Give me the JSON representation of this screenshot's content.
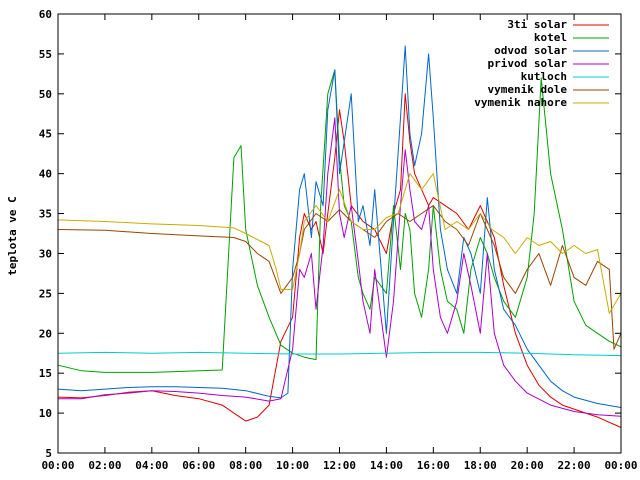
{
  "chart_data": {
    "type": "line",
    "title": "",
    "xlabel": "",
    "ylabel": "teplota ve C",
    "xlim": [
      0,
      24
    ],
    "ylim": [
      5,
      60
    ],
    "x_tick_labels": [
      "00:00",
      "02:00",
      "04:00",
      "06:00",
      "08:00",
      "10:00",
      "12:00",
      "14:00",
      "16:00",
      "18:00",
      "20:00",
      "22:00",
      "00:00"
    ],
    "y_tick_labels": [
      "5",
      "10",
      "15",
      "20",
      "25",
      "30",
      "35",
      "40",
      "45",
      "50",
      "55",
      "60"
    ],
    "grid": false,
    "legend_position": "top-right",
    "series": [
      {
        "name": "3ti solar",
        "color": "#dd0000",
        "points": [
          [
            0,
            12
          ],
          [
            1,
            11.9
          ],
          [
            2,
            12.2
          ],
          [
            3,
            12.6
          ],
          [
            4,
            12.8
          ],
          [
            5,
            12.2
          ],
          [
            6,
            11.8
          ],
          [
            7,
            11
          ],
          [
            7.5,
            10
          ],
          [
            8,
            9
          ],
          [
            8.5,
            9.5
          ],
          [
            9,
            11
          ],
          [
            9.5,
            19
          ],
          [
            10,
            22
          ],
          [
            10.3,
            32
          ],
          [
            10.5,
            35
          ],
          [
            10.8,
            33
          ],
          [
            11,
            34
          ],
          [
            11.3,
            30
          ],
          [
            11.5,
            35
          ],
          [
            11.8,
            42
          ],
          [
            12,
            48
          ],
          [
            12.2,
            44
          ],
          [
            12.5,
            36
          ],
          [
            13,
            34
          ],
          [
            13.5,
            33
          ],
          [
            14,
            30
          ],
          [
            14.3,
            35
          ],
          [
            14.6,
            38
          ],
          [
            14.8,
            50
          ],
          [
            15,
            44
          ],
          [
            15.2,
            40
          ],
          [
            15.5,
            38
          ],
          [
            15.8,
            36
          ],
          [
            16,
            37
          ],
          [
            16.5,
            36
          ],
          [
            17,
            35
          ],
          [
            17.5,
            33
          ],
          [
            18,
            36
          ],
          [
            18.3,
            34
          ],
          [
            18.6,
            32
          ],
          [
            19,
            26
          ],
          [
            19.5,
            20
          ],
          [
            20,
            16
          ],
          [
            20.5,
            13.5
          ],
          [
            21,
            12
          ],
          [
            21.5,
            11
          ],
          [
            22,
            10.5
          ],
          [
            23,
            9.5
          ],
          [
            24,
            8.2
          ]
        ]
      },
      {
        "name": "kotel",
        "color": "#00a000",
        "points": [
          [
            0,
            16
          ],
          [
            1,
            15.3
          ],
          [
            2,
            15.1
          ],
          [
            3,
            15.1
          ],
          [
            4,
            15.1
          ],
          [
            5,
            15.2
          ],
          [
            6,
            15.3
          ],
          [
            7,
            15.4
          ],
          [
            7.5,
            42
          ],
          [
            7.8,
            43.5
          ],
          [
            8,
            33
          ],
          [
            8.5,
            26
          ],
          [
            9,
            22
          ],
          [
            9.5,
            18.5
          ],
          [
            10,
            17.5
          ],
          [
            10.5,
            17
          ],
          [
            11,
            16.7
          ],
          [
            11.2,
            36
          ],
          [
            11.5,
            50
          ],
          [
            11.8,
            53
          ],
          [
            12,
            42
          ],
          [
            12.2,
            36
          ],
          [
            12.5,
            34
          ],
          [
            12.8,
            27
          ],
          [
            13,
            25
          ],
          [
            13.3,
            23
          ],
          [
            13.5,
            27
          ],
          [
            14,
            25
          ],
          [
            14.3,
            36
          ],
          [
            14.6,
            28
          ],
          [
            14.8,
            35
          ],
          [
            15,
            33
          ],
          [
            15.2,
            25
          ],
          [
            15.5,
            22
          ],
          [
            15.8,
            28
          ],
          [
            16,
            36
          ],
          [
            16.3,
            28
          ],
          [
            16.6,
            24
          ],
          [
            17,
            23
          ],
          [
            17.3,
            20
          ],
          [
            17.6,
            28
          ],
          [
            18,
            32
          ],
          [
            18.3,
            30
          ],
          [
            18.6,
            27
          ],
          [
            19,
            24
          ],
          [
            19.5,
            22
          ],
          [
            20,
            27
          ],
          [
            20.3,
            35
          ],
          [
            20.6,
            52
          ],
          [
            21,
            40
          ],
          [
            21.5,
            33
          ],
          [
            22,
            24
          ],
          [
            22.5,
            21
          ],
          [
            23,
            20
          ],
          [
            23.5,
            19
          ],
          [
            24,
            18.3
          ]
        ]
      },
      {
        "name": "odvod solar",
        "color": "#0066cc",
        "points": [
          [
            0,
            13
          ],
          [
            1,
            12.8
          ],
          [
            2,
            13
          ],
          [
            3,
            13.2
          ],
          [
            4,
            13.3
          ],
          [
            5,
            13.3
          ],
          [
            6,
            13.2
          ],
          [
            7,
            13.1
          ],
          [
            8,
            12.8
          ],
          [
            9,
            12.1
          ],
          [
            9.5,
            11.9
          ],
          [
            9.8,
            12.5
          ],
          [
            10,
            28
          ],
          [
            10.3,
            38
          ],
          [
            10.5,
            40
          ],
          [
            10.8,
            32
          ],
          [
            11,
            39
          ],
          [
            11.3,
            36
          ],
          [
            11.5,
            48
          ],
          [
            11.8,
            53
          ],
          [
            12,
            40
          ],
          [
            12.2,
            44
          ],
          [
            12.5,
            50
          ],
          [
            12.8,
            34
          ],
          [
            13,
            36
          ],
          [
            13.3,
            31
          ],
          [
            13.5,
            38
          ],
          [
            14,
            20
          ],
          [
            14.3,
            34
          ],
          [
            14.6,
            47
          ],
          [
            14.8,
            56
          ],
          [
            15,
            45
          ],
          [
            15.2,
            41
          ],
          [
            15.5,
            45
          ],
          [
            15.8,
            55
          ],
          [
            16,
            47
          ],
          [
            16.3,
            33
          ],
          [
            16.6,
            28
          ],
          [
            17,
            25
          ],
          [
            17.3,
            32
          ],
          [
            17.6,
            30
          ],
          [
            18,
            25
          ],
          [
            18.3,
            37
          ],
          [
            18.6,
            28
          ],
          [
            19,
            23
          ],
          [
            19.5,
            21
          ],
          [
            20,
            18
          ],
          [
            20.5,
            16
          ],
          [
            21,
            14
          ],
          [
            21.5,
            12.8
          ],
          [
            22,
            12
          ],
          [
            23,
            11.2
          ],
          [
            24,
            10.7
          ]
        ]
      },
      {
        "name": "privod solar",
        "color": "#aa00cc",
        "points": [
          [
            0,
            11.8
          ],
          [
            1,
            11.8
          ],
          [
            2,
            12.3
          ],
          [
            3,
            12.5
          ],
          [
            4,
            12.8
          ],
          [
            5,
            12.7
          ],
          [
            6,
            12.5
          ],
          [
            7,
            12.2
          ],
          [
            8,
            12
          ],
          [
            9,
            11.5
          ],
          [
            9.5,
            11.8
          ],
          [
            10,
            18
          ],
          [
            10.3,
            28
          ],
          [
            10.5,
            27
          ],
          [
            10.8,
            30
          ],
          [
            11,
            23
          ],
          [
            11.3,
            31
          ],
          [
            11.5,
            40
          ],
          [
            11.8,
            47
          ],
          [
            12,
            35
          ],
          [
            12.2,
            32
          ],
          [
            12.5,
            36
          ],
          [
            12.8,
            29
          ],
          [
            13,
            24
          ],
          [
            13.3,
            20
          ],
          [
            13.5,
            28
          ],
          [
            14,
            17
          ],
          [
            14.3,
            24
          ],
          [
            14.6,
            36
          ],
          [
            14.8,
            43
          ],
          [
            15,
            38
          ],
          [
            15.2,
            34
          ],
          [
            15.5,
            33
          ],
          [
            15.8,
            36
          ],
          [
            16,
            28
          ],
          [
            16.3,
            22
          ],
          [
            16.6,
            20
          ],
          [
            17,
            24
          ],
          [
            17.3,
            30
          ],
          [
            17.6,
            26
          ],
          [
            18,
            20
          ],
          [
            18.3,
            30
          ],
          [
            18.6,
            20
          ],
          [
            19,
            16
          ],
          [
            19.5,
            14
          ],
          [
            20,
            12.5
          ],
          [
            21,
            11
          ],
          [
            22,
            10.2
          ],
          [
            23,
            9.8
          ],
          [
            24,
            9.6
          ]
        ]
      },
      {
        "name": "kutloch",
        "color": "#00cccc",
        "points": [
          [
            0,
            17.5
          ],
          [
            2,
            17.6
          ],
          [
            4,
            17.5
          ],
          [
            6,
            17.6
          ],
          [
            8,
            17.5
          ],
          [
            10,
            17.4
          ],
          [
            12,
            17.4
          ],
          [
            14,
            17.5
          ],
          [
            16,
            17.6
          ],
          [
            18,
            17.6
          ],
          [
            20,
            17.5
          ],
          [
            22,
            17.3
          ],
          [
            24,
            17.2
          ]
        ]
      },
      {
        "name": "vymenik dole",
        "color": "#994400",
        "points": [
          [
            0,
            33
          ],
          [
            2,
            32.9
          ],
          [
            4,
            32.5
          ],
          [
            6,
            32.2
          ],
          [
            7.5,
            32
          ],
          [
            8,
            31.5
          ],
          [
            8.5,
            30
          ],
          [
            9,
            29
          ],
          [
            9.5,
            25
          ],
          [
            10,
            27
          ],
          [
            10.3,
            30
          ],
          [
            10.5,
            33
          ],
          [
            11,
            35
          ],
          [
            11.5,
            34
          ],
          [
            12,
            35.5
          ],
          [
            12.5,
            34
          ],
          [
            13,
            33
          ],
          [
            13.5,
            32
          ],
          [
            14,
            34
          ],
          [
            14.5,
            35
          ],
          [
            15,
            34
          ],
          [
            15.5,
            35
          ],
          [
            16,
            36
          ],
          [
            16.5,
            34
          ],
          [
            17,
            33
          ],
          [
            17.5,
            31
          ],
          [
            18,
            35
          ],
          [
            18.3,
            33
          ],
          [
            18.6,
            31
          ],
          [
            19,
            27
          ],
          [
            19.5,
            25
          ],
          [
            20,
            28
          ],
          [
            20.5,
            30
          ],
          [
            21,
            26
          ],
          [
            21.5,
            31
          ],
          [
            22,
            27
          ],
          [
            22.5,
            26
          ],
          [
            23,
            29
          ],
          [
            23.5,
            28
          ],
          [
            23.7,
            18
          ],
          [
            24,
            20
          ]
        ]
      },
      {
        "name": "vymenik nahore",
        "color": "#ccaa00",
        "points": [
          [
            0,
            34.2
          ],
          [
            2,
            34
          ],
          [
            4,
            33.7
          ],
          [
            6,
            33.5
          ],
          [
            7.5,
            33.2
          ],
          [
            8,
            32.5
          ],
          [
            9,
            31
          ],
          [
            9.3,
            28
          ],
          [
            9.5,
            25.5
          ],
          [
            10,
            25.5
          ],
          [
            10.3,
            30
          ],
          [
            10.5,
            34
          ],
          [
            11,
            36
          ],
          [
            11.5,
            34
          ],
          [
            12,
            38
          ],
          [
            12.5,
            34
          ],
          [
            13,
            33
          ],
          [
            13.5,
            33
          ],
          [
            14,
            34.5
          ],
          [
            14.5,
            35
          ],
          [
            15,
            40
          ],
          [
            15.5,
            38
          ],
          [
            16,
            40
          ],
          [
            16.5,
            33
          ],
          [
            17,
            34
          ],
          [
            17.5,
            33
          ],
          [
            18,
            35
          ],
          [
            18.5,
            33
          ],
          [
            19,
            32
          ],
          [
            19.5,
            30
          ],
          [
            20,
            32
          ],
          [
            20.5,
            31
          ],
          [
            21,
            31.5
          ],
          [
            21.5,
            30
          ],
          [
            22,
            31
          ],
          [
            22.5,
            30
          ],
          [
            23,
            30.5
          ],
          [
            23.5,
            22.5
          ],
          [
            24,
            25
          ]
        ]
      }
    ]
  }
}
